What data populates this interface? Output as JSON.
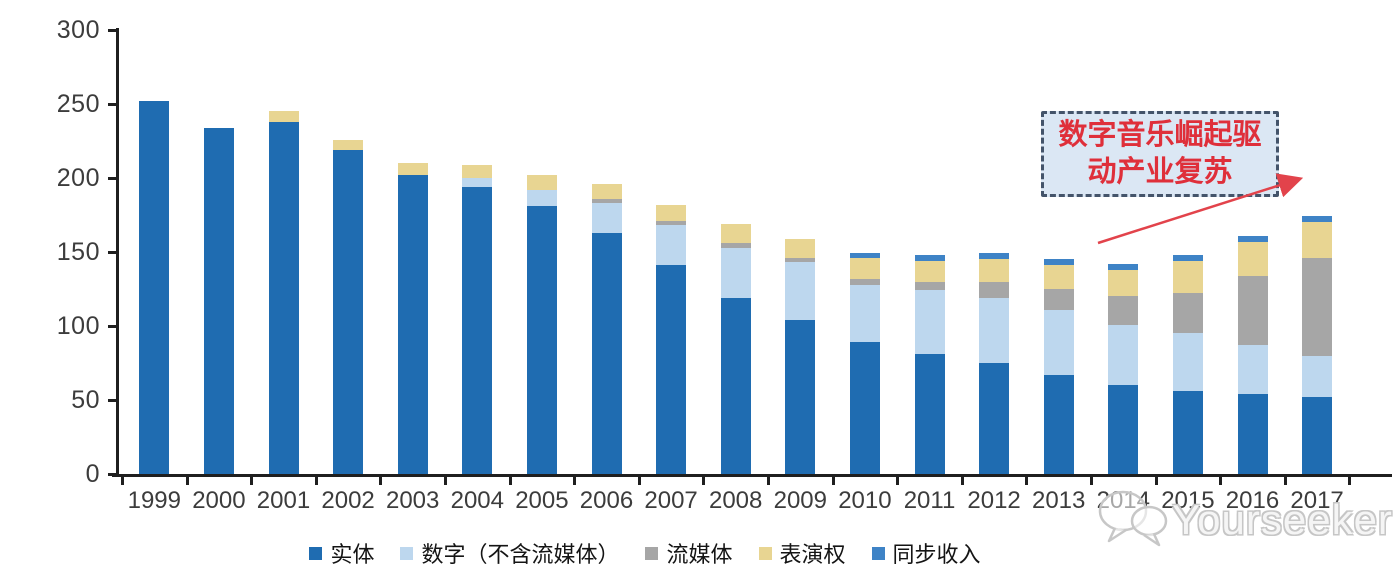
{
  "chart_data": {
    "type": "bar",
    "stacked": true,
    "title": "",
    "xlabel": "",
    "ylabel": "",
    "categories": [
      "1999",
      "2000",
      "2001",
      "2002",
      "2003",
      "2004",
      "2005",
      "2006",
      "2007",
      "2008",
      "2009",
      "2010",
      "2011",
      "2012",
      "2013",
      "2014",
      "2015",
      "2016",
      "2017"
    ],
    "series": [
      {
        "name": "实体",
        "color": "#1F6CB1",
        "values": [
          252,
          234,
          238,
          219,
          202,
          194,
          181,
          163,
          141,
          119,
          104,
          89,
          81,
          75,
          67,
          60,
          56,
          54,
          52
        ]
      },
      {
        "name": "数字（不含流媒体）",
        "color": "#BDD7EE",
        "values": [
          0,
          0,
          0,
          0,
          0,
          6,
          11,
          20,
          27,
          34,
          39,
          39,
          43,
          44,
          44,
          41,
          39,
          33,
          28
        ]
      },
      {
        "name": "流媒体",
        "color": "#A6A6A6",
        "values": [
          0,
          0,
          0,
          0,
          0,
          0,
          0,
          3,
          3,
          3,
          3,
          4,
          6,
          11,
          14,
          19,
          27,
          47,
          66
        ]
      },
      {
        "name": "表演权",
        "color": "#E8D592",
        "values": [
          0,
          0,
          7,
          7,
          8,
          9,
          10,
          10,
          11,
          13,
          13,
          14,
          14,
          15,
          16,
          18,
          22,
          23,
          24
        ]
      },
      {
        "name": "同步收入",
        "color": "#3E83C6",
        "values": [
          0,
          0,
          0,
          0,
          0,
          0,
          0,
          0,
          0,
          0,
          0,
          3,
          4,
          4,
          4,
          4,
          4,
          4,
          4
        ]
      }
    ],
    "ylim": [
      0,
      300
    ],
    "y_ticks": [
      "0",
      "50",
      "100",
      "150",
      "200",
      "250",
      "300"
    ],
    "grid": false,
    "legend_position": "bottom"
  },
  "annotation": {
    "text": "数字音乐崛起驱动产业复苏",
    "lines": [
      "数字音乐崛起驱",
      "动产业复苏"
    ],
    "text_color": "#DF2F3A",
    "box_fill": "#DBE7F4",
    "box_border_color": "#44546A",
    "arrow_color": "#E2434B"
  },
  "watermark": {
    "text": "Yourseeker",
    "icon": "chat-bubbles-icon"
  },
  "axis": {
    "line_color": "#1F1F1F",
    "label_color": "#3C3C3C"
  }
}
